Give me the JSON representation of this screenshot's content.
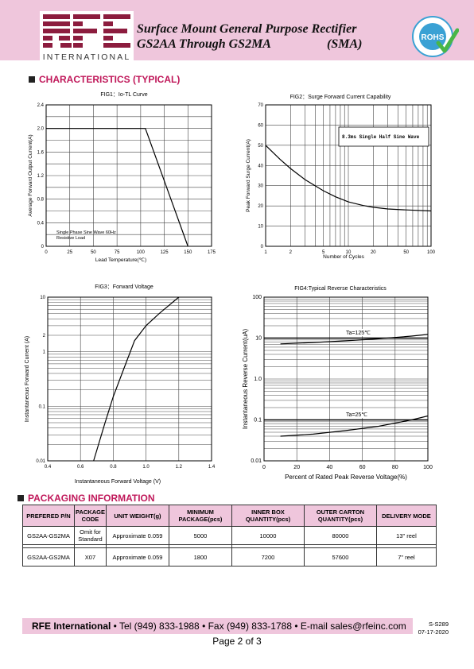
{
  "header": {
    "logo_text": "RFE",
    "logo_sub": "INTERNATIONAL",
    "title_line1": "Surface Mount General  Purpose Rectifier",
    "title_line2": "GS2AA Through GS2MA",
    "title_package": "(SMA)",
    "rohs_badge": "ROHS",
    "rohs_ring_text": "COMPLIANT COMPLIANT"
  },
  "section1_title": "CHARACTERISTICS (TYPICAL)",
  "fig1": {
    "title": "FIG1：Io-TL Curve",
    "ylabel": "Average Forward Output Current(A)",
    "xlabel": "Lead Temperature(℃)",
    "note_line1": "Single Phase  Sine Wave 60Hz",
    "note_line2": "Resistive Load"
  },
  "fig2": {
    "title": "FIG2：Surge Forward Current Capability",
    "ylabel": "Peak Forward Surge Current(A)",
    "xlabel": "Number of Cycles",
    "legend": "8.3ms Single Half Sine Wave"
  },
  "fig3": {
    "title": "FIG3：Forward Voltage",
    "ylabel": "Instantaneous  Forward Current (A)",
    "xlabel": "Instantaneous  Forward Voltage (V)"
  },
  "fig4": {
    "title": "FIG4:Typical Reverse Characteristics",
    "ylabel": "Instantaneous Reverse Current(uA)",
    "xlabel": "Percent of Rated Peak Reverse Voltage(%)",
    "label_125": "Ta=125℃",
    "label_25": "Ta=25℃"
  },
  "chart_data": [
    {
      "type": "line",
      "title": "FIG1：Io-TL Curve",
      "xlabel": "Lead Temperature(℃)",
      "ylabel": "Average Forward Output Current(A)",
      "xlim": [
        0,
        175
      ],
      "ylim": [
        0,
        2.4
      ],
      "x_ticks": [
        "0",
        "25",
        "50",
        "75",
        "100",
        "125",
        "150",
        "175"
      ],
      "y_ticks": [
        "0",
        "0.4",
        "0.8",
        "1.2",
        "1.6",
        "2.0",
        "2.4"
      ],
      "grid": true,
      "series": [
        {
          "x": [
            0,
            105,
            150
          ],
          "y": [
            2.0,
            2.0,
            0
          ]
        }
      ]
    },
    {
      "type": "line",
      "title": "FIG2：Surge Forward Current Capability",
      "xlabel": "Number of Cycles",
      "ylabel": "Peak Forward Surge Current(A)",
      "x_scale": "log",
      "xlim": [
        1,
        100
      ],
      "ylim": [
        0,
        70
      ],
      "x_ticks": [
        "1",
        "2",
        "5",
        "10",
        "20",
        "50",
        "100"
      ],
      "y_ticks": [
        "0",
        "10",
        "20",
        "30",
        "40",
        "50",
        "60",
        "70"
      ],
      "grid": true,
      "legend": "8.3ms Single Half Sine Wave",
      "series": [
        {
          "x": [
            1,
            1.5,
            2,
            3,
            5,
            7,
            10,
            15,
            20,
            30,
            50,
            100
          ],
          "y": [
            50,
            43,
            38.5,
            33,
            27.5,
            24.5,
            22,
            20.2,
            19.3,
            18.5,
            18,
            17.5
          ]
        }
      ]
    },
    {
      "type": "line",
      "title": "FIG3：Forward Voltage",
      "xlabel": "Instantaneous  Forward Voltage (V)",
      "ylabel": "Instantaneous  Forward Current (A)",
      "y_scale": "log",
      "xlim": [
        0.4,
        1.4
      ],
      "ylim": [
        0.01,
        10
      ],
      "x_ticks": [
        "0.4",
        "0.6",
        "0.8",
        "1.0",
        "1.2",
        "1.4"
      ],
      "y_ticks": [
        "0.01",
        "0.1",
        "1",
        "2",
        "10"
      ],
      "grid": true,
      "series": [
        {
          "x": [
            0.68,
            0.75,
            0.8,
            0.86,
            0.93,
            1.0,
            1.08,
            1.2
          ],
          "y": [
            0.01,
            0.05,
            0.15,
            0.45,
            1.6,
            3.0,
            5.0,
            10
          ]
        }
      ]
    },
    {
      "type": "line",
      "title": "FIG4:Typical Reverse Characteristics",
      "xlabel": "Percent of Rated Peak Reverse Voltage(%)",
      "ylabel": "Instantaneous Reverse Current(uA)",
      "y_scale": "log",
      "xlim": [
        0,
        100
      ],
      "ylim": [
        0.01,
        100
      ],
      "x_ticks": [
        "0",
        "20",
        "40",
        "60",
        "80",
        "100"
      ],
      "y_ticks": [
        "0.01",
        "0.1",
        "1.0",
        "10",
        "100"
      ],
      "grid": true,
      "series": [
        {
          "name": "Ta=125℃",
          "x": [
            10,
            30,
            50,
            70,
            90,
            100
          ],
          "y": [
            7.2,
            7.8,
            8.6,
            9.6,
            11.2,
            12.3
          ]
        },
        {
          "name": "Ta=25℃",
          "x": [
            10,
            30,
            50,
            70,
            90,
            100
          ],
          "y": [
            0.04,
            0.045,
            0.055,
            0.07,
            0.1,
            0.125
          ]
        }
      ]
    }
  ],
  "section2_title": "PACKAGING INFORMATION",
  "packaging": {
    "headers": [
      "PREFERED P/N",
      "PACKAGE CODE",
      "UNIT WEIGHT(g)",
      "MINIMUM PACKAGE(pcs)",
      "INNER BOX QUANTITY(pcs)",
      "OUTER CARTON QUANTITY(pcs)",
      "DELIVERY MODE"
    ],
    "rows": [
      [
        "GS2AA-GS2MA",
        "Omit for Standard",
        "Approximate 0.059",
        "5000",
        "10000",
        "80000",
        "13\" reel"
      ],
      [
        "GS2AA-GS2MA",
        "X07",
        "Approximate 0.059",
        "1800",
        "7200",
        "57600",
        "7\" reel"
      ]
    ]
  },
  "footer": {
    "company": "RFE International",
    "contact": " • Tel (949) 833-1988 • Fax (949) 833-1788 • E-mail sales@rfeinc.com",
    "doc_code": "S-S289",
    "doc_date": "07-17-2020",
    "page": "Page 2 of 3"
  }
}
